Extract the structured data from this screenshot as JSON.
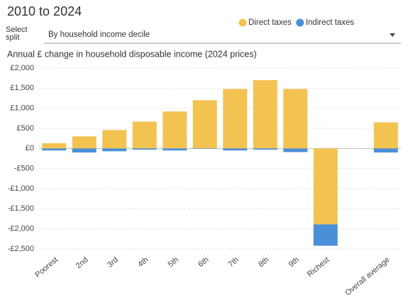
{
  "header": {
    "title": "2010 to 2024",
    "select_label": "Select split",
    "select_value": "By household income decile"
  },
  "chart_data": {
    "type": "bar",
    "stacked": true,
    "y_axis_title": "Annual £ change in household disposable income (2024 prices)",
    "categories": [
      "Poorest",
      "2nd",
      "3rd",
      "4th",
      "5th",
      "6th",
      "7th",
      "8th",
      "9th",
      "Richest",
      null,
      "Overall average"
    ],
    "series": [
      {
        "name": "Direct taxes",
        "color": "#f3c352",
        "values": [
          130,
          300,
          460,
          670,
          920,
          1200,
          1480,
          1700,
          1480,
          -1890,
          null,
          650
        ]
      },
      {
        "name": "Indirect taxes",
        "color": "#4a90d9",
        "values": [
          -50,
          -100,
          -70,
          -30,
          -50,
          -10,
          -50,
          -30,
          -90,
          -530,
          null,
          -100
        ]
      }
    ],
    "ylim": [
      -2500,
      2000
    ],
    "yticks": [
      {
        "value": -2500,
        "label": "-£2,500"
      },
      {
        "value": -2000,
        "label": "-£2,000"
      },
      {
        "value": -1500,
        "label": "-£1,500"
      },
      {
        "value": -1000,
        "label": "-£1,000"
      },
      {
        "value": -500,
        "label": "-£500"
      },
      {
        "value": 0,
        "label": "£0"
      },
      {
        "value": 500,
        "label": "£500"
      },
      {
        "value": 1000,
        "label": "£1,000"
      },
      {
        "value": 1500,
        "label": "£1,500"
      },
      {
        "value": 2000,
        "label": "£2,000"
      }
    ],
    "grid": true
  }
}
